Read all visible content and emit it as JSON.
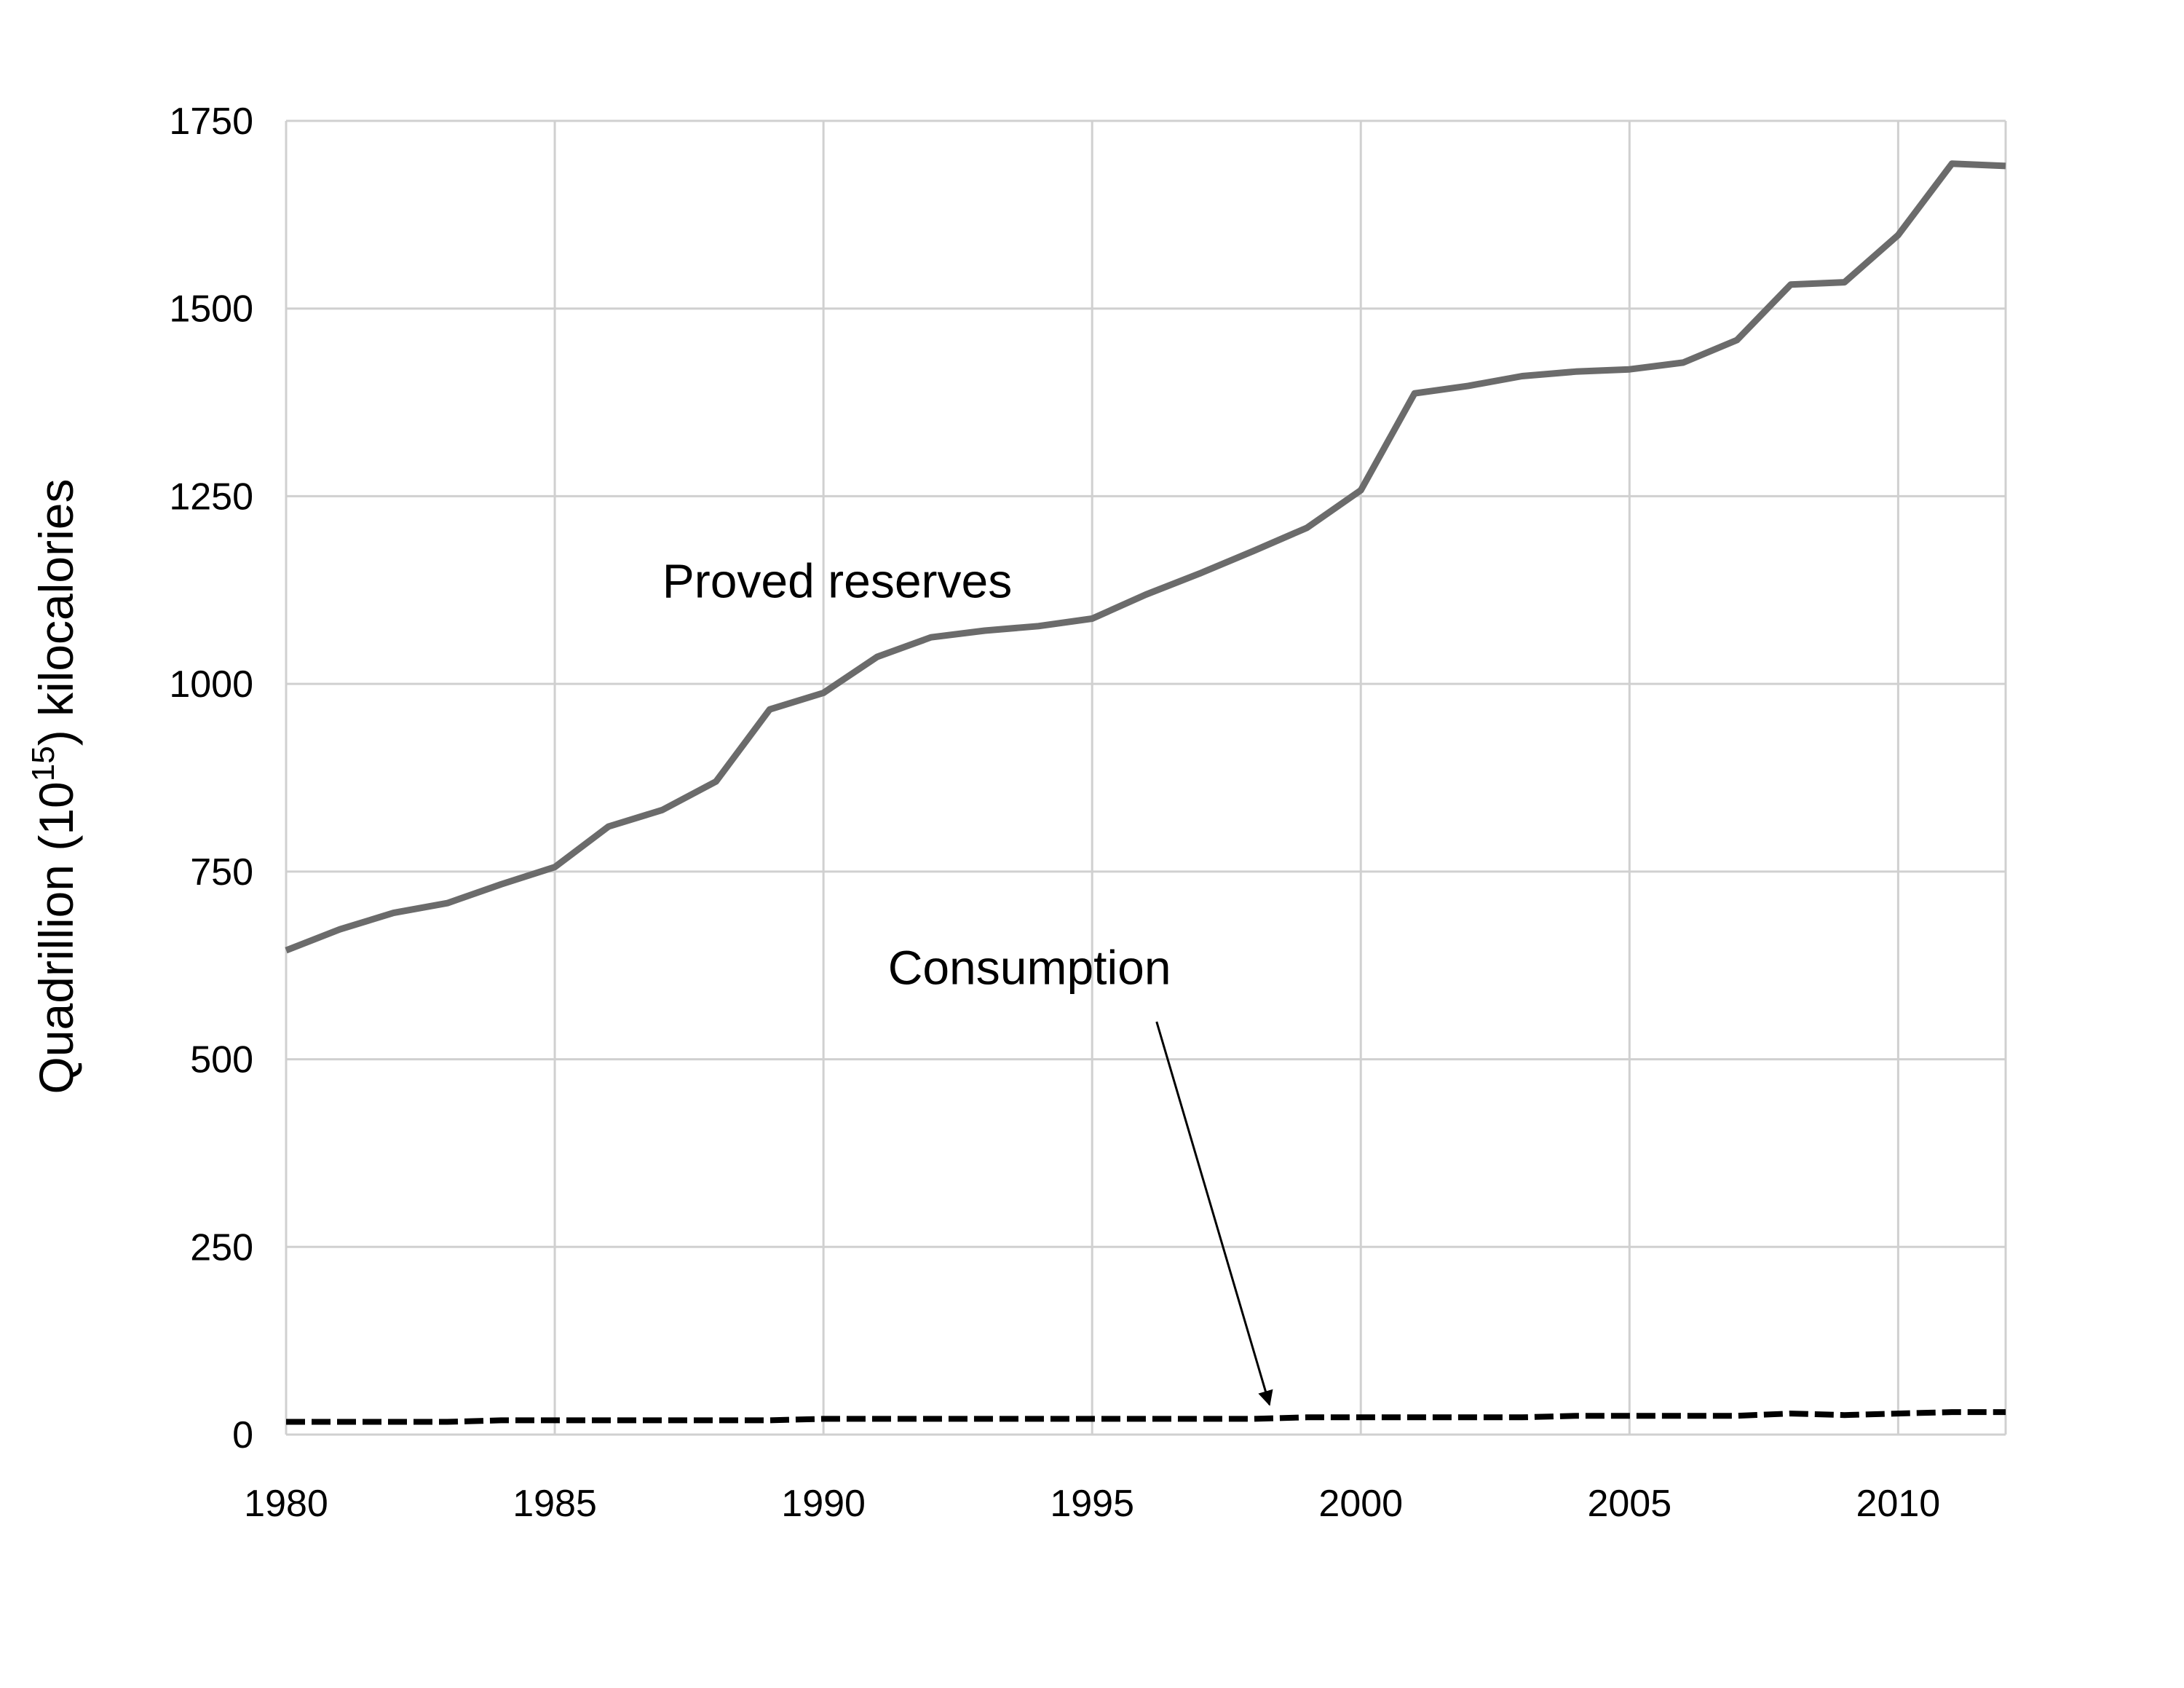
{
  "chart_data": {
    "type": "line",
    "title": "",
    "xlabel": "",
    "ylabel": {
      "prefix": "Quadrillion (10",
      "superscript": "15",
      "suffix": ") kilocalories"
    },
    "xlim": [
      1980,
      2012
    ],
    "ylim": [
      0,
      1750
    ],
    "x_ticks": [
      1980,
      1985,
      1990,
      1995,
      2000,
      2005,
      2010
    ],
    "y_ticks": [
      0,
      250,
      500,
      750,
      1000,
      1250,
      1500,
      1750
    ],
    "grid": true,
    "legend": "none",
    "x": [
      1980,
      1981,
      1982,
      1983,
      1984,
      1985,
      1986,
      1987,
      1988,
      1989,
      1990,
      1991,
      1992,
      1993,
      1994,
      1995,
      1996,
      1997,
      1998,
      1999,
      2000,
      2001,
      2002,
      2003,
      2004,
      2005,
      2006,
      2007,
      2008,
      2009,
      2010,
      2011,
      2012
    ],
    "series": [
      {
        "name": "Proved reserves",
        "color": "#6b6b6b",
        "style": "solid",
        "values": [
          645,
          673,
          695,
          708,
          733,
          756,
          810,
          832,
          870,
          966,
          988,
          1036,
          1062,
          1071,
          1077,
          1087,
          1119,
          1147,
          1177,
          1208,
          1258,
          1387,
          1397,
          1410,
          1416,
          1419,
          1428,
          1458,
          1532,
          1535,
          1598,
          1693,
          1690
        ]
      },
      {
        "name": "Consumption",
        "color": "#000000",
        "style": "dashed",
        "values": [
          17,
          17,
          17,
          17,
          19,
          19,
          19,
          19,
          19,
          19,
          21,
          21,
          21,
          21,
          21,
          21,
          21,
          21,
          21,
          23,
          23,
          23,
          23,
          23,
          25,
          25,
          25,
          25,
          28,
          26,
          28,
          30,
          30
        ]
      }
    ],
    "annotations": [
      {
        "text": "Proved reserves",
        "x": 1987.0,
        "y": 1115,
        "anchor": "start"
      },
      {
        "text": "Consumption",
        "x": 1991.2,
        "y": 600,
        "anchor": "start",
        "arrow_from": [
          1996.2,
          550
        ],
        "arrow_to": [
          1998.3,
          40
        ]
      }
    ]
  }
}
